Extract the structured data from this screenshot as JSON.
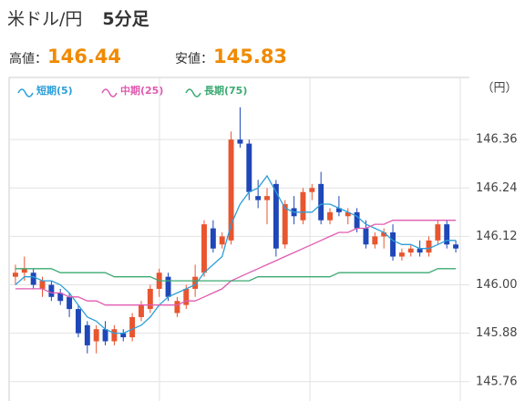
{
  "header": {
    "title": "米ドル/円",
    "interval": "5分足",
    "high_label": "高値：",
    "high_value": 146.44,
    "low_label": "安値：",
    "low_value": 145.83
  },
  "chart_data": {
    "type": "candlestick",
    "unit": "（円）",
    "up_color": "#e8552f",
    "down_color": "#1f47b8",
    "ylim": [
      145.712,
      146.514
    ],
    "yticks": [
      146.36,
      146.24,
      146.12,
      {
        "value": 146,
        "label": "146.00"
      },
      145.88,
      145.76
    ],
    "grid": true,
    "open": [
      146.02,
      146.03,
      146.03,
      145.99,
      146.0,
      145.98,
      145.97,
      145.94,
      145.9,
      145.86,
      145.89,
      145.86,
      145.88,
      145.87,
      145.92,
      145.94,
      145.99,
      146.02,
      145.93,
      145.95,
      145.99,
      146.03,
      146.14,
      146.1,
      146.11,
      146.36,
      146.35,
      146.22,
      146.21,
      146.25,
      146.1,
      146.19,
      146.16,
      146.23,
      146.25,
      146.16,
      146.19,
      146.17,
      146.18,
      146.14,
      146.1,
      146.12,
      146.13,
      146.07,
      146.08,
      146.09,
      146.08,
      146.11,
      146.15,
      146.1
    ],
    "high": [
      146.05,
      146.07,
      146.04,
      146.02,
      146.01,
      145.99,
      145.98,
      145.95,
      145.91,
      145.9,
      145.91,
      145.9,
      145.89,
      145.93,
      145.96,
      146.0,
      146.04,
      146.03,
      145.97,
      146.0,
      146.05,
      146.16,
      146.16,
      146.13,
      146.38,
      146.44,
      146.36,
      146.26,
      146.24,
      146.26,
      146.21,
      146.22,
      146.24,
      146.25,
      146.28,
      146.19,
      146.22,
      146.19,
      146.19,
      146.16,
      146.13,
      146.14,
      146.15,
      146.09,
      146.1,
      146.11,
      146.12,
      146.16,
      146.16,
      146.11
    ],
    "low": [
      146.0,
      146.01,
      145.99,
      145.97,
      145.96,
      145.95,
      145.92,
      145.87,
      145.83,
      145.83,
      145.85,
      145.85,
      145.86,
      145.86,
      145.91,
      145.93,
      145.97,
      145.96,
      145.92,
      145.94,
      145.97,
      146.02,
      146.08,
      146.09,
      146.1,
      146.34,
      146.21,
      146.19,
      146.15,
      146.07,
      146.09,
      146.15,
      146.15,
      146.21,
      146.15,
      146.15,
      146.17,
      146.15,
      146.13,
      146.09,
      146.09,
      146.09,
      146.06,
      146.06,
      146.07,
      146.07,
      146.07,
      146.1,
      146.09,
      146.08
    ],
    "close": [
      146.03,
      146.04,
      146.0,
      146.01,
      145.97,
      145.96,
      145.94,
      145.88,
      145.85,
      145.89,
      145.86,
      145.89,
      145.87,
      145.92,
      145.95,
      145.99,
      146.03,
      145.97,
      145.96,
      145.99,
      146.02,
      146.15,
      146.09,
      146.12,
      146.36,
      146.35,
      146.23,
      146.21,
      146.22,
      146.09,
      146.2,
      146.17,
      146.23,
      146.24,
      146.16,
      146.18,
      146.18,
      146.18,
      146.14,
      146.1,
      146.12,
      146.13,
      146.07,
      146.08,
      146.09,
      146.08,
      146.11,
      146.15,
      146.1,
      146.09
    ],
    "series": [
      {
        "name": "短期(5)",
        "color": "#2c9fd8",
        "values": [
          146.0,
          146.02,
          146.02,
          146.01,
          146.01,
          146.0,
          145.98,
          145.95,
          145.92,
          145.91,
          145.89,
          145.88,
          145.88,
          145.89,
          145.9,
          145.92,
          145.95,
          145.97,
          145.98,
          145.99,
          146.0,
          146.03,
          146.05,
          146.07,
          146.15,
          146.2,
          146.23,
          146.24,
          146.27,
          146.23,
          146.19,
          146.18,
          146.18,
          146.18,
          146.2,
          146.2,
          146.19,
          146.18,
          146.17,
          146.15,
          146.14,
          146.13,
          146.11,
          146.1,
          146.1,
          146.09,
          146.09,
          146.1,
          146.11,
          146.11
        ]
      },
      {
        "name": "中期(25)",
        "color": "#e05bb0",
        "values": [
          145.99,
          145.99,
          145.99,
          145.99,
          145.98,
          145.98,
          145.97,
          145.97,
          145.96,
          145.96,
          145.95,
          145.95,
          145.95,
          145.95,
          145.95,
          145.95,
          145.95,
          145.95,
          145.95,
          145.96,
          145.96,
          145.97,
          145.98,
          145.99,
          146.01,
          146.02,
          146.03,
          146.04,
          146.05,
          146.06,
          146.07,
          146.08,
          146.09,
          146.1,
          146.11,
          146.12,
          146.13,
          146.13,
          146.14,
          146.14,
          146.15,
          146.15,
          146.16,
          146.16,
          146.16,
          146.16,
          146.16,
          146.16,
          146.16,
          146.16
        ]
      },
      {
        "name": "長期(75)",
        "color": "#3caa72",
        "values": [
          146.04,
          146.04,
          146.04,
          146.04,
          146.04,
          146.03,
          146.03,
          146.03,
          146.03,
          146.03,
          146.03,
          146.02,
          146.02,
          146.02,
          146.02,
          146.02,
          146.01,
          146.01,
          146.01,
          146.01,
          146.01,
          146.01,
          146.01,
          146.01,
          146.01,
          146.01,
          146.01,
          146.02,
          146.02,
          146.02,
          146.02,
          146.02,
          146.02,
          146.02,
          146.02,
          146.02,
          146.03,
          146.03,
          146.03,
          146.03,
          146.03,
          146.03,
          146.03,
          146.03,
          146.03,
          146.03,
          146.03,
          146.04,
          146.04,
          146.04
        ]
      }
    ]
  }
}
